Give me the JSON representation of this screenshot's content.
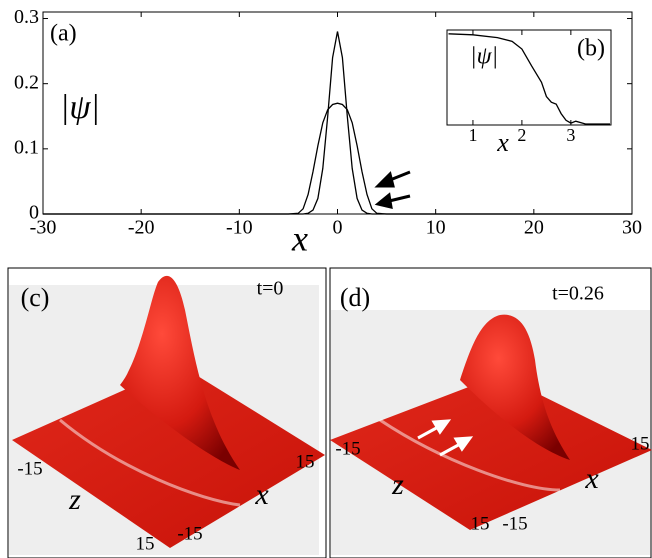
{
  "chart_data": [
    {
      "type": "line",
      "panel_label": "(a)",
      "ylabel": "|ψ|",
      "xlabel": "x",
      "x": [
        -30,
        -6,
        -5,
        -4,
        -3.5,
        -3,
        -2.5,
        -2,
        -1.5,
        -1,
        -0.5,
        0,
        0.5,
        1,
        1.5,
        2,
        2.5,
        3,
        3.5,
        4,
        5,
        6,
        30
      ],
      "series": [
        {
          "color": "#000000",
          "values": [
            0,
            0,
            0,
            0,
            0,
            0.001,
            0.006,
            0.024,
            0.07,
            0.15,
            0.24,
            0.28,
            0.24,
            0.15,
            0.07,
            0.024,
            0.006,
            0.001,
            0,
            0,
            0,
            0,
            0
          ]
        },
        {
          "color": "#000000",
          "values": [
            0,
            0,
            0,
            0.001,
            0.008,
            0.03,
            0.065,
            0.105,
            0.14,
            0.16,
            0.168,
            0.17,
            0.168,
            0.16,
            0.14,
            0.105,
            0.065,
            0.03,
            0.008,
            0.001,
            0,
            0,
            0
          ]
        }
      ],
      "xlim": [
        -30,
        30
      ],
      "xticks": [
        -30,
        -20,
        -10,
        0,
        10,
        20,
        30
      ],
      "ylim": [
        0,
        0.31
      ],
      "yticks": [
        0,
        0.1,
        0.2,
        0.3
      ]
    },
    {
      "type": "line",
      "panel_label": "(b)",
      "ylabel": "|ψ|",
      "xlabel": "x",
      "x": [
        0.5,
        1.0,
        1.5,
        1.8,
        2.0,
        2.2,
        2.4,
        2.5,
        2.6,
        2.7,
        2.8,
        2.9,
        3.0,
        3.1,
        3.3,
        3.8
      ],
      "series": [
        {
          "color": "#000000",
          "values": [
            0.96,
            0.95,
            0.92,
            0.88,
            0.8,
            0.62,
            0.45,
            0.3,
            0.24,
            0.22,
            0.12,
            0.05,
            0.02,
            0.04,
            0.01,
            0.01
          ]
        }
      ],
      "xlim": [
        0.47,
        3.82
      ],
      "xticks": [
        1,
        2,
        3
      ],
      "ylim": [
        0,
        1
      ]
    }
  ],
  "surface_panels": [
    {
      "label": "(c)",
      "time": "t=0",
      "z_start": "-15",
      "z_end": "15",
      "z_axis": "z",
      "x_start": "-15",
      "x_end": "15",
      "x_axis": "x"
    },
    {
      "label": "(d)",
      "time": "t=0.26",
      "z_start": "-15",
      "z_end": "15",
      "z_axis": "z",
      "x_start": "-15",
      "x_end": "15",
      "x_axis": "x"
    }
  ]
}
